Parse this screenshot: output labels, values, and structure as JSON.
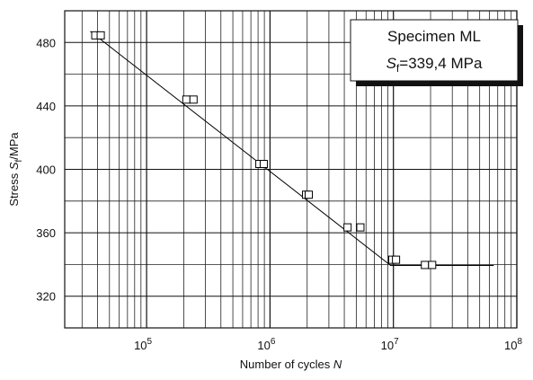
{
  "chart_data": {
    "type": "scatter",
    "xscale": "log",
    "xlim": [
      21700,
      100000000
    ],
    "ylim": [
      300,
      500
    ],
    "xticks": [
      {
        "value": 100000,
        "label": "10",
        "exponent": "5"
      },
      {
        "value": 1000000,
        "label": "10",
        "exponent": "6"
      },
      {
        "value": 10000000,
        "label": "10",
        "exponent": "7"
      },
      {
        "value": 100000000,
        "label": "10",
        "exponent": "8"
      }
    ],
    "yticks": [
      320,
      360,
      400,
      440,
      480
    ],
    "grid": true,
    "color": "#000000",
    "x_label": {
      "text": "Number of cycles ",
      "symbol": "N"
    },
    "y_label": {
      "text": "Stress ",
      "symbol": "S",
      "subscript": "f",
      "unit": "/MPa"
    },
    "annotation": {
      "title": "Specimen ML",
      "symbol": "S",
      "subscript": "f",
      "text": "=339,4 MPa"
    },
    "points": {
      "x": [
        38400,
        42500,
        210000,
        240000,
        820000,
        890000,
        1960000,
        2060000,
        4250000,
        5400000,
        9800000,
        10500000,
        18000000,
        20600000
      ],
      "values": [
        484.5,
        484.5,
        444,
        444,
        403.4,
        403.4,
        384,
        384,
        363.4,
        363.4,
        343,
        343,
        339.7,
        339.7
      ]
    },
    "fit_line": {
      "x": [
        35000,
        9500000,
        65000000
      ],
      "values": [
        487,
        339.4,
        339.4
      ]
    }
  }
}
